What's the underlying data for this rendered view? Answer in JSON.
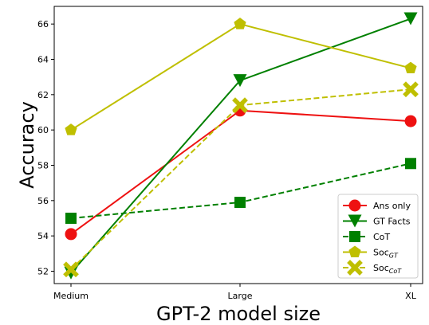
{
  "chart_data": {
    "type": "line",
    "categories": [
      "Medium",
      "Large",
      "XL"
    ],
    "xlabel": "GPT-2 model size",
    "ylabel": "Accuracy",
    "ylim": [
      51.3,
      67.0
    ],
    "yticks": [
      52,
      54,
      56,
      58,
      60,
      62,
      64,
      66
    ],
    "grid": false,
    "legend_position": "lower-right",
    "series": [
      {
        "name": "Ans only",
        "sub": "",
        "values": [
          54.1,
          61.1,
          60.5
        ],
        "color": "#ee1111",
        "dash": "solid",
        "marker": "circle"
      },
      {
        "name": "GT Facts",
        "sub": "",
        "values": [
          51.9,
          62.8,
          66.3
        ],
        "color": "#008000",
        "dash": "solid",
        "marker": "triangle-down"
      },
      {
        "name": "CoT",
        "sub": "",
        "values": [
          55.0,
          55.9,
          58.1
        ],
        "color": "#008000",
        "dash": "dashed",
        "marker": "square"
      },
      {
        "name": "Soc",
        "sub": "GT",
        "values": [
          60.0,
          66.0,
          63.5
        ],
        "color": "#bfbf00",
        "dash": "solid",
        "marker": "pentagon"
      },
      {
        "name": "Soc",
        "sub": "CoT",
        "values": [
          52.1,
          61.4,
          62.3
        ],
        "color": "#bfbf00",
        "dash": "dashed",
        "marker": "x-thick"
      }
    ]
  }
}
